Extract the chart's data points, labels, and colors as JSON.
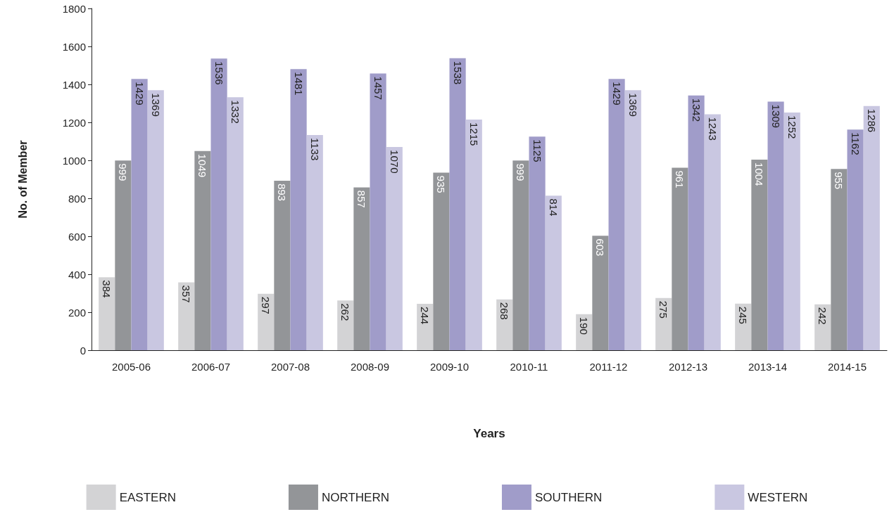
{
  "chart_data": {
    "type": "bar",
    "xlabel": "Years",
    "ylabel": "No. of Member",
    "categories": [
      "2005-06",
      "2006-07",
      "2007-08",
      "2008-09",
      "2009-10",
      "2010-11",
      "2011-12",
      "2012-13",
      "2013-14",
      "2014-15"
    ],
    "series": [
      {
        "name": "EASTERN",
        "color": "#d3d3d5",
        "values": [
          384,
          357,
          297,
          262,
          244,
          268,
          190,
          275,
          245,
          242
        ]
      },
      {
        "name": "NORTHERN",
        "color": "#939598",
        "values": [
          999,
          1049,
          893,
          857,
          935,
          999,
          603,
          961,
          1004,
          955
        ]
      },
      {
        "name": "SOUTHERN",
        "color": "#a09cc9",
        "values": [
          1429,
          1536,
          1481,
          1457,
          1538,
          1125,
          1429,
          1342,
          1309,
          1162
        ]
      },
      {
        "name": "WESTERN",
        "color": "#c9c7e1",
        "values": [
          1369,
          1332,
          1133,
          1070,
          1215,
          814,
          1369,
          1243,
          1252,
          1286
        ]
      }
    ],
    "ylim": [
      0,
      1800
    ],
    "yticks": [
      0,
      200,
      400,
      600,
      800,
      1000,
      1200,
      1400,
      1600,
      1800
    ],
    "data_labels": true,
    "grid": false,
    "legend": "bottom"
  }
}
